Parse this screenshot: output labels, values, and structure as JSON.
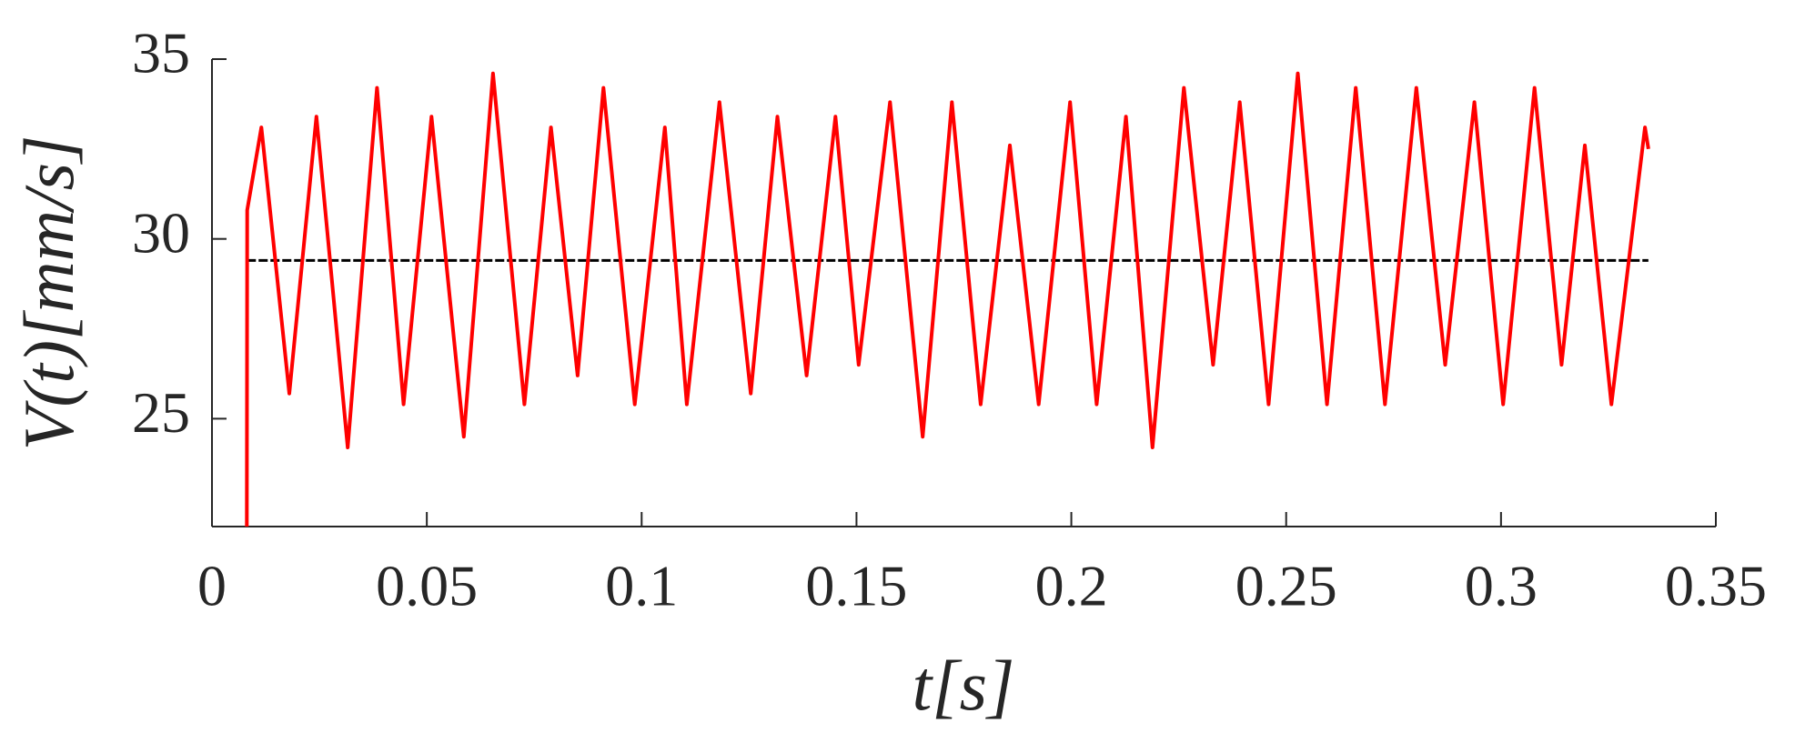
{
  "chart_data": {
    "type": "line",
    "xlabel": "t[s]",
    "ylabel": "V(t)[mm/s]",
    "xlim": [
      0,
      0.35
    ],
    "xticks": [
      0,
      0.05,
      0.1,
      0.15,
      0.2,
      0.25,
      0.3,
      0.35
    ],
    "ylim": [
      22,
      35
    ],
    "yticks": [
      25,
      30,
      35
    ],
    "grid": false,
    "series": [
      {
        "color": "#ff0000",
        "x": [
          0.0081,
          0.0082,
          0.0115,
          0.018,
          0.0243,
          0.0316,
          0.0384,
          0.0446,
          0.0511,
          0.0586,
          0.0654,
          0.0727,
          0.0789,
          0.0851,
          0.0911,
          0.0984,
          0.1054,
          0.1105,
          0.1181,
          0.1254,
          0.1316,
          0.1384,
          0.1451,
          0.1505,
          0.1578,
          0.1654,
          0.1722,
          0.1789,
          0.1857,
          0.1924,
          0.1997,
          0.2059,
          0.2127,
          0.2189,
          0.2262,
          0.233,
          0.2392,
          0.2459,
          0.2527,
          0.2595,
          0.2662,
          0.273,
          0.2803,
          0.287,
          0.2938,
          0.3005,
          0.3078,
          0.3141,
          0.3195,
          0.3257,
          0.3335,
          0.3343
        ],
        "values": [
          22,
          30.8,
          33.1,
          25.7,
          33.4,
          24.2,
          34.2,
          25.4,
          33.4,
          24.5,
          34.6,
          25.4,
          33.1,
          26.2,
          34.2,
          25.4,
          33.1,
          25.4,
          33.8,
          25.7,
          33.4,
          26.2,
          33.4,
          26.5,
          33.8,
          24.5,
          33.8,
          25.4,
          32.6,
          25.4,
          33.8,
          25.4,
          33.4,
          24.2,
          34.2,
          26.5,
          33.8,
          25.4,
          34.6,
          25.4,
          34.2,
          25.4,
          34.2,
          26.5,
          33.8,
          25.4,
          34.2,
          26.5,
          32.6,
          25.4,
          33.1,
          32.5
        ]
      }
    ],
    "reference_line": {
      "y": 29.4,
      "x": [
        0.0081,
        0.3343
      ],
      "color": "#000000",
      "dashed": true
    }
  }
}
